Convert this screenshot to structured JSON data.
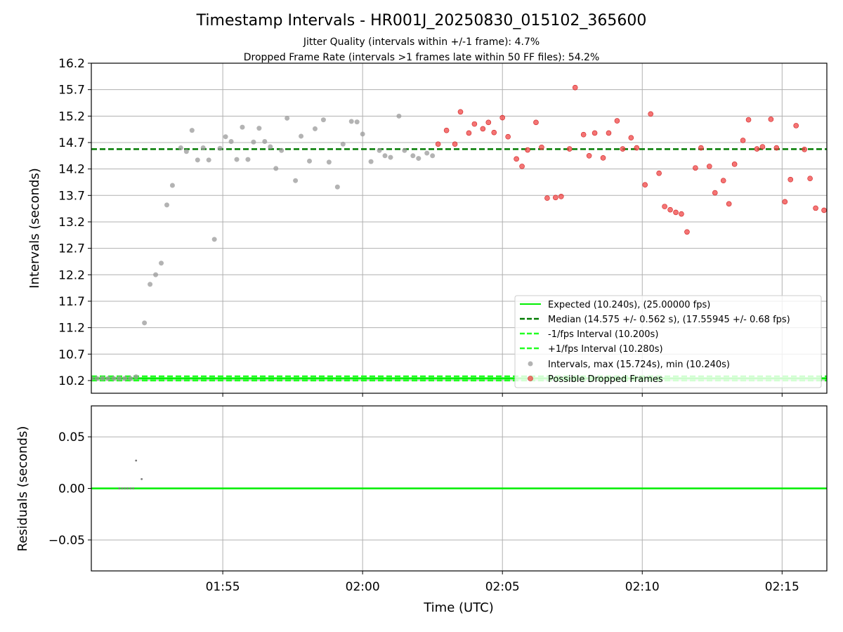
{
  "chart_data": [
    {
      "type": "scatter",
      "title": "Timestamp Intervals - HR001J_20250830_015102_365600",
      "subtitle_1": "Jitter Quality (intervals within +/-1 frame): 4.7%",
      "subtitle_2": "Dropped Frame Rate (intervals >1 frames late within 50 FF files): 54.2%",
      "ylabel": "Intervals (seconds)",
      "xlim_minutes": [
        0.3,
        26.6
      ],
      "x_time_base": "01:50",
      "ylim": [
        9.96,
        16.2
      ],
      "yticks": [
        "10.2",
        "10.7",
        "11.2",
        "11.7",
        "12.2",
        "12.7",
        "13.2",
        "13.7",
        "14.2",
        "14.7",
        "15.2",
        "15.7",
        "16.2"
      ],
      "xticks": [
        "01:55",
        "02:00",
        "02:05",
        "02:10",
        "02:15"
      ],
      "grid": true,
      "legend_position": "lower-right",
      "colors": {
        "expected": "#00ee00",
        "median": "#007a00",
        "interval_line": "#22ff22",
        "intervals": "#999999",
        "dropped": "#f04545",
        "dropped_edge": "#d02020"
      },
      "lines": {
        "expected": 10.24,
        "median": 14.575,
        "minus_fps": 10.2,
        "plus_fps": 10.28
      },
      "legend": [
        {
          "label": "Expected (10.240s), (25.00000 fps)",
          "style": "solid"
        },
        {
          "label": "Median (14.575 +/- 0.562 s), (17.55945 +/- 0.68 fps)",
          "style": "dashed-dark"
        },
        {
          "label": "-1/fps Interval (10.200s)",
          "style": "dashed-light"
        },
        {
          "label": "+1/fps Interval (10.280s)",
          "style": "dashed-light"
        },
        {
          "label": "Intervals, max (15.724s), min (10.240s)",
          "style": "gray-dot"
        },
        {
          "label": "Possible Dropped Frames",
          "style": "red-dot"
        }
      ],
      "series": [
        {
          "name": "Intervals",
          "x": [
            2.2,
            2.4,
            2.6,
            2.8,
            3.0,
            3.2,
            3.5,
            3.7,
            3.9,
            4.1,
            4.3,
            4.5,
            4.7,
            4.9,
            5.1,
            5.3,
            5.5,
            5.7,
            5.9,
            6.1,
            6.3,
            6.5,
            6.7,
            6.9,
            7.1,
            7.3,
            7.6,
            7.8,
            8.1,
            8.3,
            8.6,
            8.8,
            9.1,
            9.3,
            9.6,
            9.8,
            10.0,
            10.3,
            10.6,
            10.8,
            11.0,
            11.3,
            11.5,
            11.8,
            12.0,
            12.3,
            12.5
          ],
          "y": [
            11.29,
            12.02,
            12.2,
            12.42,
            13.52,
            13.89,
            14.6,
            14.53,
            14.93,
            14.37,
            14.6,
            14.37,
            12.87,
            14.59,
            14.81,
            14.72,
            14.38,
            14.99,
            14.38,
            14.71,
            14.97,
            14.72,
            14.62,
            14.21,
            14.55,
            15.16,
            13.98,
            14.82,
            14.35,
            14.96,
            15.13,
            14.33,
            13.86,
            14.67,
            15.1,
            15.09,
            14.86,
            14.34,
            14.55,
            14.45,
            14.42,
            15.2,
            14.55,
            14.45,
            14.4,
            14.5,
            14.45
          ]
        },
        {
          "name": "Possible Dropped Frames",
          "x": [
            12.7,
            13.0,
            13.3,
            13.5,
            13.8,
            14.0,
            14.3,
            14.5,
            14.7,
            15.0,
            15.2,
            15.5,
            15.7,
            15.9,
            16.2,
            16.4,
            16.6,
            16.9,
            17.1,
            17.4,
            17.6,
            17.9,
            18.1,
            18.3,
            18.6,
            18.8,
            19.1,
            19.3,
            19.6,
            19.8,
            20.1,
            20.3,
            20.6,
            20.8,
            21.0,
            21.2,
            21.4,
            21.6,
            21.9,
            22.1,
            22.4,
            22.6,
            22.9,
            23.1,
            23.3,
            23.6,
            23.8,
            24.1,
            24.3,
            24.6,
            24.8,
            25.1,
            25.3,
            25.5,
            25.8,
            26.0,
            26.2,
            26.5
          ],
          "y": [
            14.67,
            14.93,
            14.67,
            15.28,
            14.88,
            15.05,
            14.96,
            15.08,
            14.89,
            15.17,
            14.81,
            14.39,
            14.25,
            14.56,
            15.08,
            14.61,
            13.65,
            13.66,
            13.68,
            14.58,
            15.74,
            14.85,
            14.45,
            14.88,
            14.41,
            14.88,
            15.11,
            14.58,
            14.79,
            14.6,
            13.9,
            15.24,
            14.12,
            13.49,
            13.43,
            13.38,
            13.35,
            13.01,
            14.22,
            14.6,
            14.25,
            13.75,
            13.98,
            13.54,
            14.29,
            14.74,
            15.13,
            14.58,
            14.62,
            15.14,
            14.6,
            13.58,
            14.0,
            15.02,
            14.57,
            14.02,
            13.46,
            13.42
          ]
        },
        {
          "name": "Minimum intervals",
          "x": [
            0.3,
            0.5,
            0.7,
            0.9,
            1.1,
            1.3,
            1.5,
            1.7,
            1.9
          ],
          "y": [
            10.24,
            10.24,
            10.24,
            10.24,
            10.24,
            10.24,
            10.24,
            10.24,
            10.27
          ]
        }
      ]
    },
    {
      "type": "scatter",
      "ylabel": "Residuals (seconds)",
      "xlabel": "Time (UTC)",
      "ylim": [
        -0.08,
        0.08
      ],
      "yticks": [
        "−0.05",
        "0.00",
        "0.05"
      ],
      "ytick_values": [
        -0.05,
        0.0,
        0.05
      ],
      "xticks": [
        "01:55",
        "02:00",
        "02:05",
        "02:10",
        "02:15"
      ],
      "baseline": 0.0,
      "series": [
        {
          "name": "Residuals",
          "x": [
            1.3,
            1.4,
            1.5,
            1.6,
            1.7,
            1.8,
            1.9,
            2.1
          ],
          "y": [
            0.0,
            0.0,
            0.0,
            0.0,
            0.0,
            0.0,
            0.027,
            0.009
          ]
        }
      ]
    }
  ]
}
